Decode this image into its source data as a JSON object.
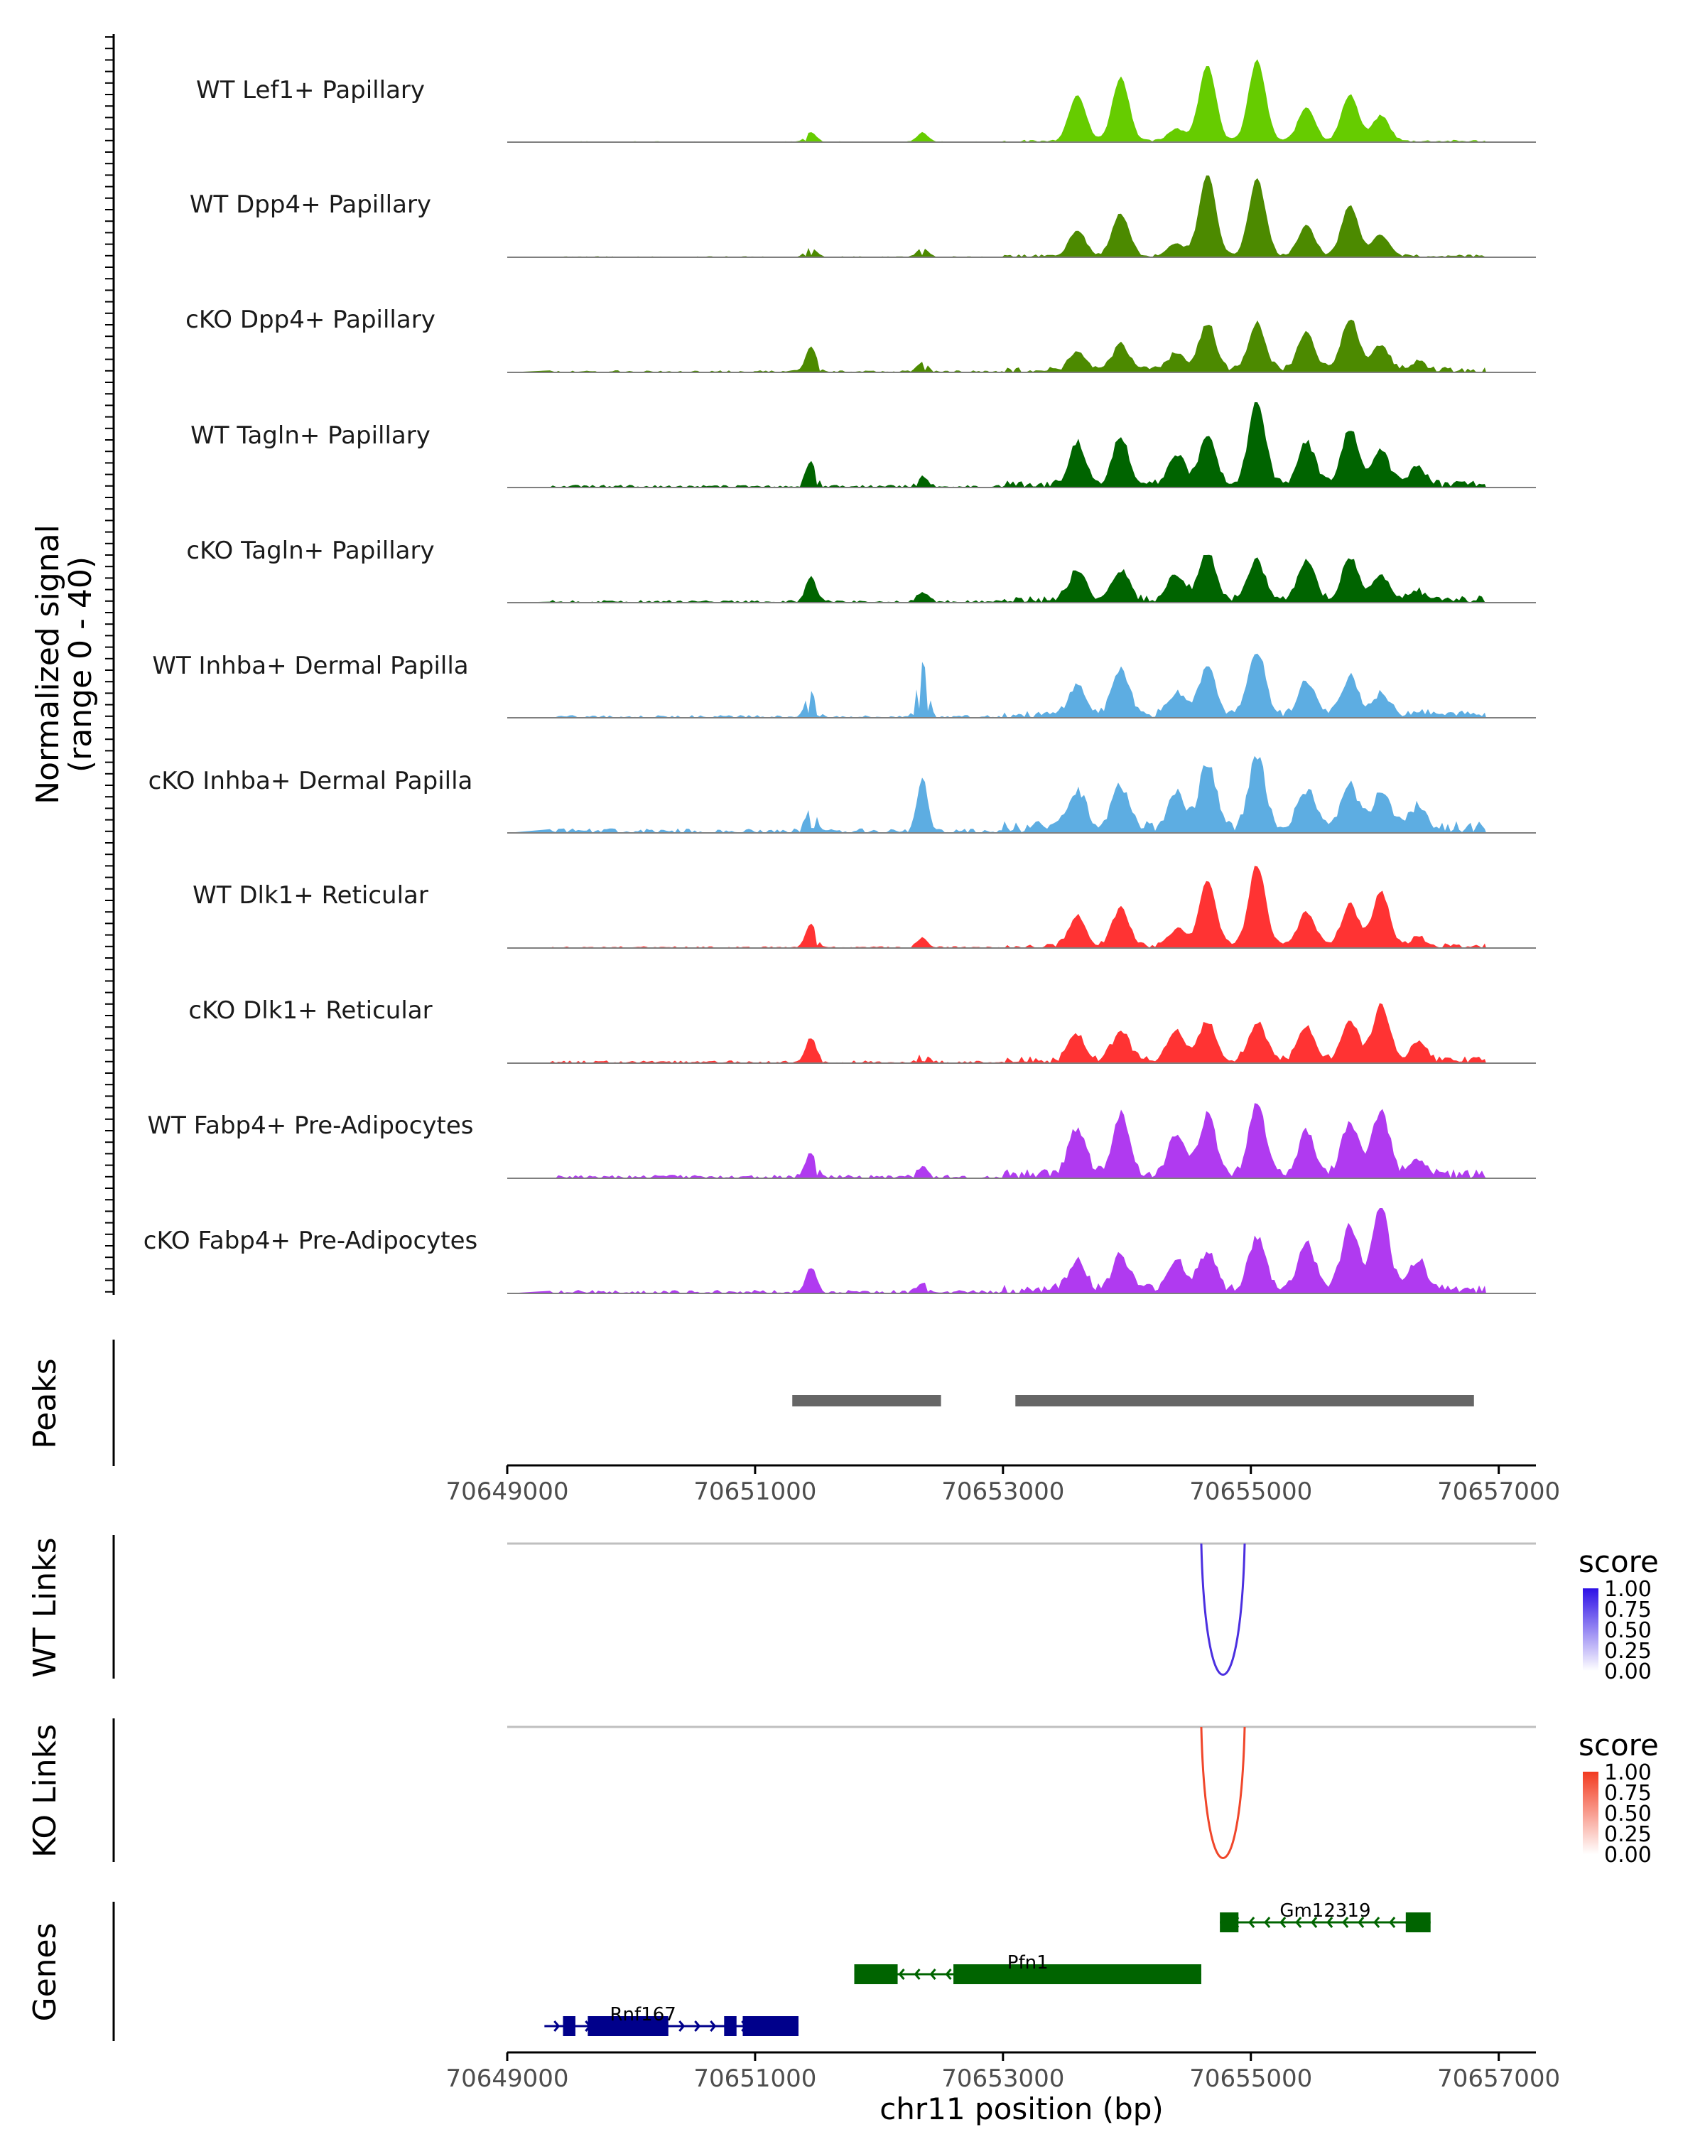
{
  "chart_data": {
    "type": "coverage",
    "region": {
      "chromosome": "chr11",
      "start": 70649000,
      "end": 70657300
    },
    "coverage": {
      "ylabel_line1": "Normalized signal",
      "ylabel_line2": "(range 0 - 40)",
      "yrange": [
        0,
        40
      ],
      "peak_bins_bp": [
        70653600,
        70653950,
        70654400,
        70654650,
        70655050,
        70655450,
        70655800,
        70656050,
        70656350
      ],
      "tracks": [
        {
          "name": "WT Lef1+ Papillary",
          "color": "#66cc00",
          "peak_heights": [
            0.55,
            0.75,
            0.15,
            0.9,
            0.95,
            0.4,
            0.55,
            0.3,
            0.0
          ],
          "noise": 0.05
        },
        {
          "name": "WT Dpp4+ Papillary",
          "color": "#4c8a00",
          "peak_heights": [
            0.3,
            0.5,
            0.15,
            0.95,
            0.9,
            0.35,
            0.6,
            0.25,
            0.0
          ],
          "noise": 0.06
        },
        {
          "name": "cKO Dpp4+ Papillary",
          "color": "#4c8a00",
          "peak_heights": [
            0.2,
            0.3,
            0.2,
            0.55,
            0.55,
            0.45,
            0.6,
            0.3,
            0.1
          ],
          "noise": 0.12
        },
        {
          "name": "WT Tagln+ Papillary",
          "color": "#006400",
          "peak_heights": [
            0.5,
            0.55,
            0.35,
            0.55,
            1.0,
            0.5,
            0.65,
            0.4,
            0.2
          ],
          "noise": 0.15
        },
        {
          "name": "cKO Tagln+ Papillary",
          "color": "#006400",
          "peak_heights": [
            0.35,
            0.35,
            0.3,
            0.55,
            0.45,
            0.45,
            0.5,
            0.3,
            0.1
          ],
          "noise": 0.15
        },
        {
          "name": "WT Inhba+ Dermal Papilla",
          "color": "#5dade2",
          "peak_heights": [
            0.35,
            0.55,
            0.25,
            0.55,
            0.75,
            0.4,
            0.45,
            0.25,
            0.05
          ],
          "noise": 0.15
        },
        {
          "name": "cKO Inhba+ Dermal Papilla",
          "color": "#5dade2",
          "peak_heights": [
            0.45,
            0.5,
            0.4,
            0.75,
            0.85,
            0.45,
            0.5,
            0.4,
            0.25
          ],
          "noise": 0.25
        },
        {
          "name": "WT Dlk1+ Reticular",
          "color": "#ff3333",
          "peak_heights": [
            0.35,
            0.45,
            0.2,
            0.75,
            0.95,
            0.4,
            0.5,
            0.65,
            0.1
          ],
          "noise": 0.1
        },
        {
          "name": "cKO Dlk1+ Reticular",
          "color": "#ff3333",
          "peak_heights": [
            0.3,
            0.35,
            0.35,
            0.45,
            0.45,
            0.4,
            0.45,
            0.65,
            0.2
          ],
          "noise": 0.15
        },
        {
          "name": "WT Fabp4+ Pre-Adipocytes",
          "color": "#b03af0",
          "peak_heights": [
            0.55,
            0.7,
            0.45,
            0.7,
            0.85,
            0.5,
            0.6,
            0.75,
            0.2
          ],
          "noise": 0.2
        },
        {
          "name": "cKO Fabp4+ Pre-Adipocytes",
          "color": "#b03af0",
          "peak_heights": [
            0.35,
            0.4,
            0.35,
            0.45,
            0.6,
            0.55,
            0.75,
            0.95,
            0.35
          ],
          "noise": 0.2
        }
      ]
    },
    "peaks": {
      "label": "Peaks",
      "regions": [
        [
          70651300,
          70652500
        ],
        [
          70653100,
          70656800
        ]
      ],
      "color": "#666666"
    },
    "x_axis": {
      "ticks": [
        70649000,
        70651000,
        70653000,
        70655000,
        70657000
      ],
      "tick_labels": [
        "70649000",
        "70651000",
        "70653000",
        "70655000",
        "70657000"
      ],
      "xlabel": "chr11 position (bp)"
    },
    "links": [
      {
        "label": "WT Links",
        "arc_start": 70654600,
        "arc_end": 70654950,
        "score": 0.85,
        "color": "#4b2fe0",
        "legend": {
          "title": "score",
          "ticks": [
            "1.00",
            "0.75",
            "0.50",
            "0.25",
            "0.00"
          ],
          "high": "#2d10e6",
          "low": "#ffffff"
        }
      },
      {
        "label": "KO Links",
        "arc_start": 70654600,
        "arc_end": 70654950,
        "score": 0.9,
        "color": "#f0462a",
        "legend": {
          "title": "score",
          "ticks": [
            "1.00",
            "0.75",
            "0.50",
            "0.25",
            "0.00"
          ],
          "high": "#f23a1f",
          "low": "#ffffff"
        }
      }
    ],
    "genes": {
      "label": "Genes",
      "items": [
        {
          "name": "Gm12319",
          "strand": "-",
          "start": 70654750,
          "end": 70656450,
          "color": "#006400",
          "exons": [
            [
              70654750,
              70654900
            ],
            [
              70656250,
              70656450
            ]
          ]
        },
        {
          "name": "Pfn1",
          "strand": "-",
          "start": 70651800,
          "end": 70654600,
          "color": "#006400",
          "exons": [
            [
              70651800,
              70652150
            ],
            [
              70652600,
              70654600
            ]
          ]
        },
        {
          "name": "Rnf167",
          "strand": "+",
          "start": 70649300,
          "end": 70651350,
          "color": "#00008b",
          "exons": [
            [
              70649450,
              70649550
            ],
            [
              70649650,
              70650300
            ],
            [
              70650750,
              70650850
            ],
            [
              70650900,
              70651350
            ]
          ]
        }
      ]
    }
  }
}
